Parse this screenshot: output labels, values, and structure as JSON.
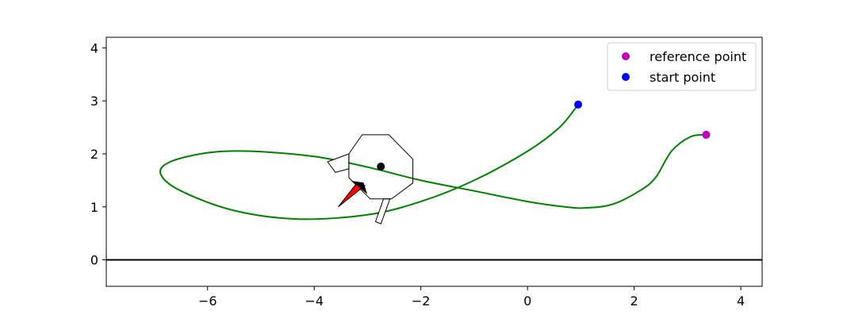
{
  "chart_data": {
    "type": "line",
    "xlim": [
      -7.9,
      4.4
    ],
    "ylim": [
      -0.5,
      4.2
    ],
    "x_ticks": [
      -6,
      -4,
      -2,
      0,
      2,
      4
    ],
    "y_ticks": [
      0,
      1,
      2,
      3,
      4
    ],
    "x_tick_labels": [
      "−6",
      "−4",
      "−2",
      "0",
      "2",
      "4"
    ],
    "y_tick_labels": [
      "0",
      "1",
      "2",
      "3",
      "4"
    ],
    "grid": false,
    "legend_position": "upper right",
    "legend": {
      "reference_label": "reference point",
      "start_label": "start point"
    },
    "horizontal_line": {
      "y": 0,
      "color": "#000000"
    },
    "trajectory": {
      "color": "#008000",
      "points": [
        [
          0.95,
          2.93
        ],
        [
          0.6,
          2.5
        ],
        [
          0.0,
          2.05
        ],
        [
          -1.0,
          1.5
        ],
        [
          -2.0,
          1.1
        ],
        [
          -3.0,
          0.85
        ],
        [
          -4.3,
          0.77
        ],
        [
          -5.5,
          0.93
        ],
        [
          -6.5,
          1.3
        ],
        [
          -6.88,
          1.62
        ],
        [
          -6.7,
          1.85
        ],
        [
          -6.0,
          2.02
        ],
        [
          -5.2,
          2.05
        ],
        [
          -4.0,
          1.95
        ],
        [
          -3.0,
          1.75
        ],
        [
          -2.0,
          1.5
        ],
        [
          -1.0,
          1.3
        ],
        [
          0.0,
          1.1
        ],
        [
          0.7,
          1.0
        ],
        [
          1.1,
          0.98
        ],
        [
          1.6,
          1.05
        ],
        [
          2.1,
          1.3
        ],
        [
          2.4,
          1.55
        ],
        [
          2.7,
          2.05
        ],
        [
          3.05,
          2.32
        ],
        [
          3.35,
          2.36
        ]
      ]
    },
    "reference_point": {
      "x": 3.35,
      "y": 2.36,
      "color": "#bf00bf"
    },
    "start_point": {
      "x": 0.95,
      "y": 2.93,
      "color": "#0000ff"
    },
    "robot": {
      "center": {
        "x": -2.75,
        "y": 1.76,
        "color": "#000000"
      },
      "body_octagon": [
        [
          -3.1,
          2.36
        ],
        [
          -2.6,
          2.36
        ],
        [
          -2.15,
          1.9
        ],
        [
          -2.15,
          1.45
        ],
        [
          -2.55,
          1.15
        ],
        [
          -2.95,
          1.15
        ],
        [
          -3.35,
          1.55
        ],
        [
          -3.35,
          2.0
        ]
      ],
      "wheel_left": [
        [
          -3.35,
          2.0
        ],
        [
          -3.75,
          1.85
        ],
        [
          -3.6,
          1.65
        ],
        [
          -3.35,
          1.72
        ]
      ],
      "wheel_bottom": [
        [
          -2.7,
          1.15
        ],
        [
          -2.85,
          0.72
        ],
        [
          -2.75,
          0.68
        ],
        [
          -2.58,
          1.15
        ]
      ],
      "heading_arrow": {
        "fill": "#ff0000",
        "points": [
          [
            -3.55,
            1.0
          ],
          [
            -3.2,
            1.45
          ],
          [
            -3.05,
            1.4
          ]
        ],
        "head": [
          [
            -3.28,
            1.48
          ],
          [
            -3.02,
            1.26
          ],
          [
            -3.08,
            1.45
          ]
        ]
      }
    }
  }
}
